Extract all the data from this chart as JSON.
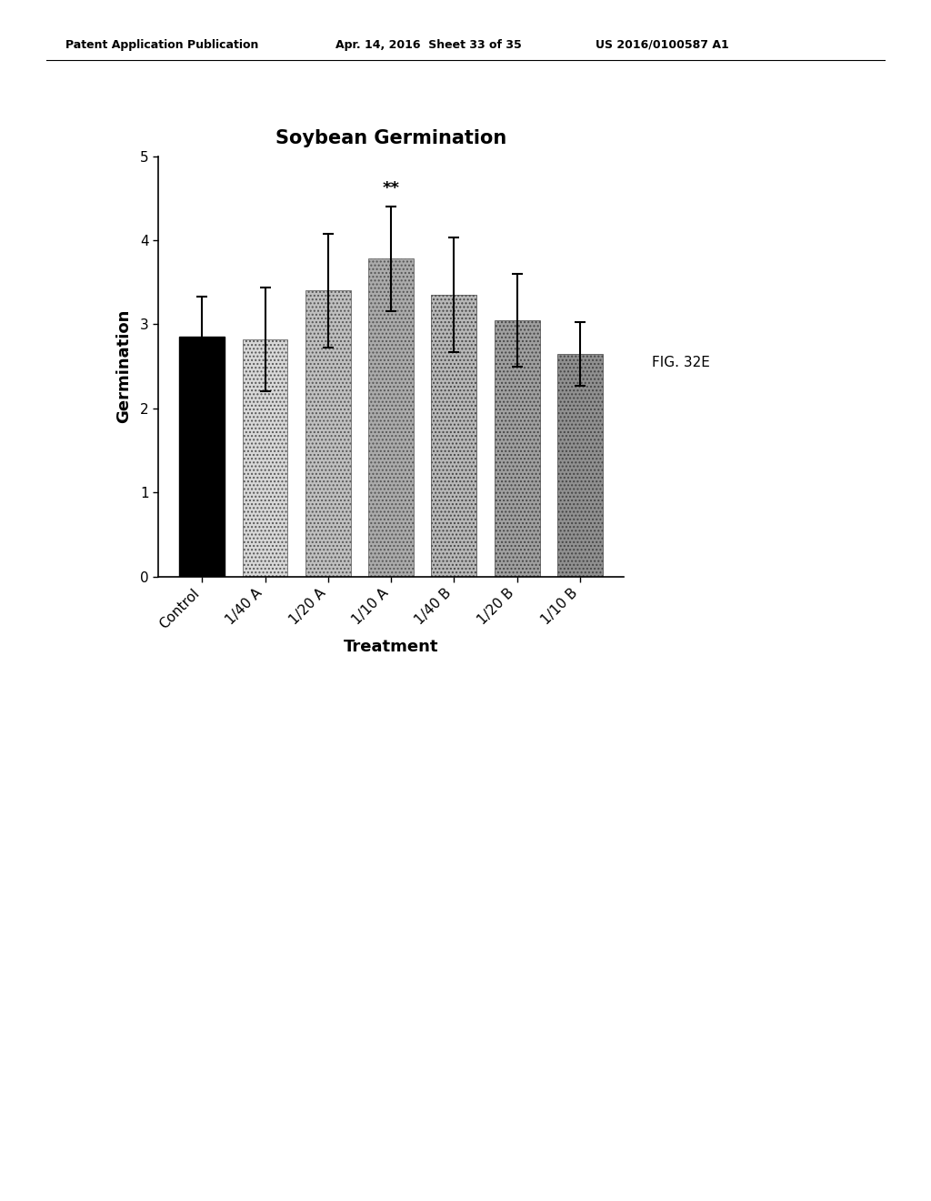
{
  "title": "Soybean Germination",
  "xlabel": "Treatment",
  "ylabel": "Germination",
  "categories": [
    "Control",
    "1/40 A",
    "1/20 A",
    "1/10 A",
    "1/40 B",
    "1/20 B",
    "1/10 B"
  ],
  "values": [
    2.85,
    2.82,
    3.4,
    3.78,
    3.35,
    3.05,
    2.65
  ],
  "errors": [
    0.48,
    0.62,
    0.68,
    0.62,
    0.68,
    0.55,
    0.38
  ],
  "ylim": [
    0,
    5
  ],
  "yticks": [
    0,
    1,
    2,
    3,
    4,
    5
  ],
  "significance": {
    "bar_index": 3,
    "label": "**"
  },
  "fig_label": "FIG. 32E",
  "header_left": "Patent Application Publication",
  "header_mid": "Apr. 14, 2016  Sheet 33 of 35",
  "header_right": "US 2016/0100587 A1",
  "background_color": "#ffffff",
  "title_fontsize": 15,
  "axis_label_fontsize": 13,
  "tick_fontsize": 11,
  "fig_label_fontsize": 11
}
